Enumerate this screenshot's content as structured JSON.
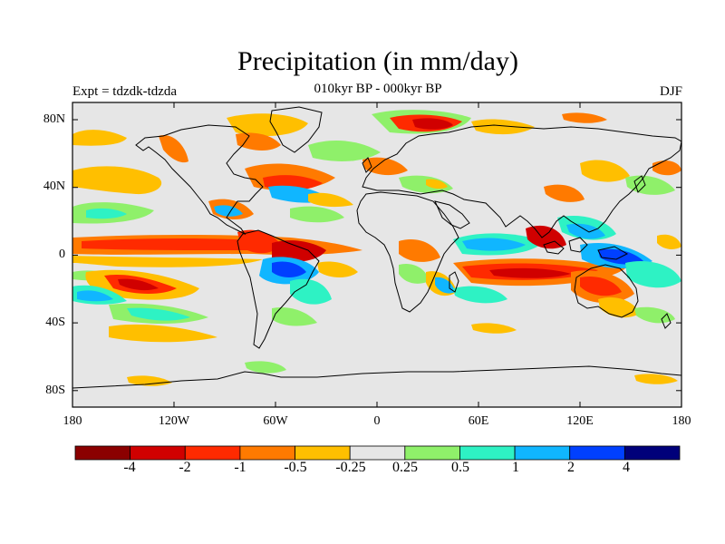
{
  "title": "Precipitation (in mm/day)",
  "subtitle": "010kyr BP - 000kyr BP",
  "left_label": "Expt = tdzdk-tdzda",
  "right_label": "DJF",
  "lat_ticks": [
    "80N",
    "40N",
    "0",
    "40S",
    "80S"
  ],
  "lon_ticks": [
    "180",
    "120W",
    "60W",
    "0",
    "60E",
    "120E",
    "180"
  ],
  "colorbar": {
    "colors": [
      "#8b0000",
      "#d00000",
      "#ff2a00",
      "#ff7a00",
      "#ffbf00",
      "#e6e6e6",
      "#8ff06a",
      "#2ef2c4",
      "#10b6ff",
      "#0040ff",
      "#00007a"
    ],
    "labels": [
      "-4",
      "-2",
      "-1",
      "-0.5",
      "-0.25",
      "0.25",
      "0.5",
      "1",
      "2",
      "4"
    ]
  },
  "map_colors": {
    "background": "#e6e6e6",
    "coast": "#000000"
  }
}
